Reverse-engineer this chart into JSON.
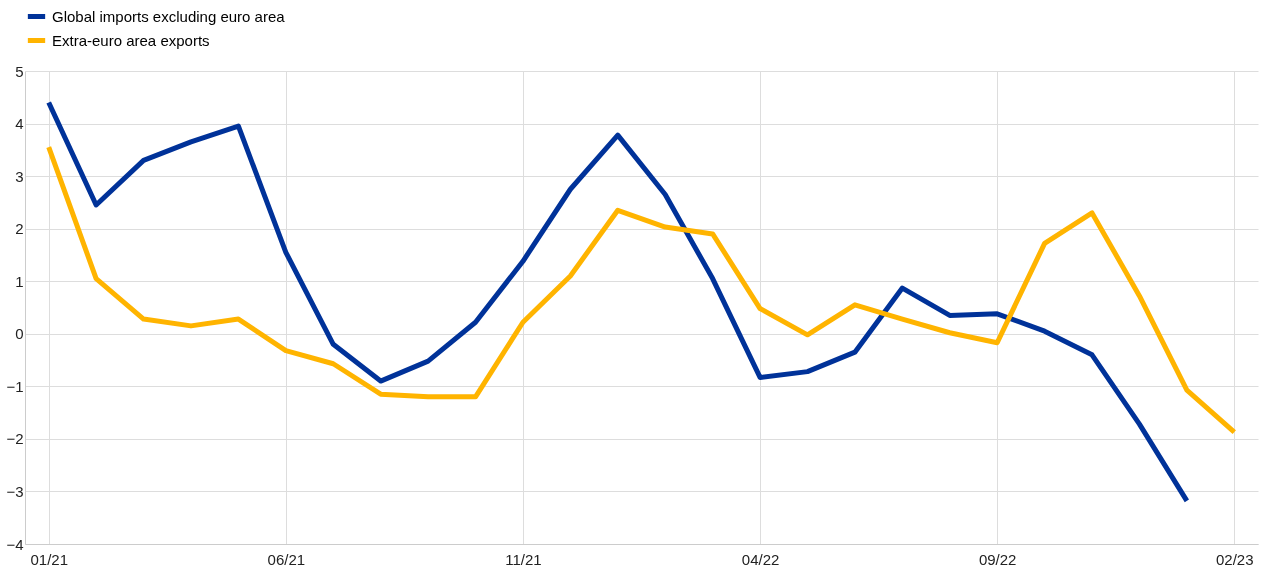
{
  "chart_data": {
    "type": "line",
    "categories": [
      "01/21",
      null,
      null,
      null,
      null,
      "06/21",
      null,
      null,
      null,
      null,
      "11/21",
      null,
      null,
      null,
      null,
      "04/22",
      null,
      null,
      null,
      null,
      "09/22",
      null,
      null,
      null,
      null,
      "02/23"
    ],
    "series": [
      {
        "name": "Global imports excluding euro area",
        "color": "#003299",
        "values": [
          4.4,
          2.45,
          3.3,
          3.65,
          3.95,
          1.55,
          -0.2,
          -0.9,
          -0.52,
          0.22,
          1.38,
          2.75,
          3.78,
          2.65,
          1.05,
          -0.83,
          -0.72,
          -0.35,
          0.87,
          0.35,
          0.38,
          0.05,
          -0.4,
          -1.72,
          -3.18,
          null
        ]
      },
      {
        "name": "Extra-euro area exports",
        "color": "#ffb400",
        "values": [
          3.55,
          1.05,
          0.28,
          0.15,
          0.28,
          -0.32,
          -0.57,
          -1.15,
          -1.2,
          -1.2,
          0.22,
          1.1,
          2.35,
          2.03,
          1.9,
          0.48,
          -0.02,
          0.55,
          0.28,
          0.02,
          -0.17,
          1.72,
          2.3,
          0.72,
          -1.07,
          -1.87
        ]
      }
    ],
    "ylim": [
      -4,
      5
    ],
    "yticks": [
      -4,
      -3,
      -2,
      -1,
      0,
      1,
      2,
      3,
      4,
      5
    ],
    "grid": true,
    "legend": "top left",
    "line_style": "solid",
    "marker": "none"
  }
}
